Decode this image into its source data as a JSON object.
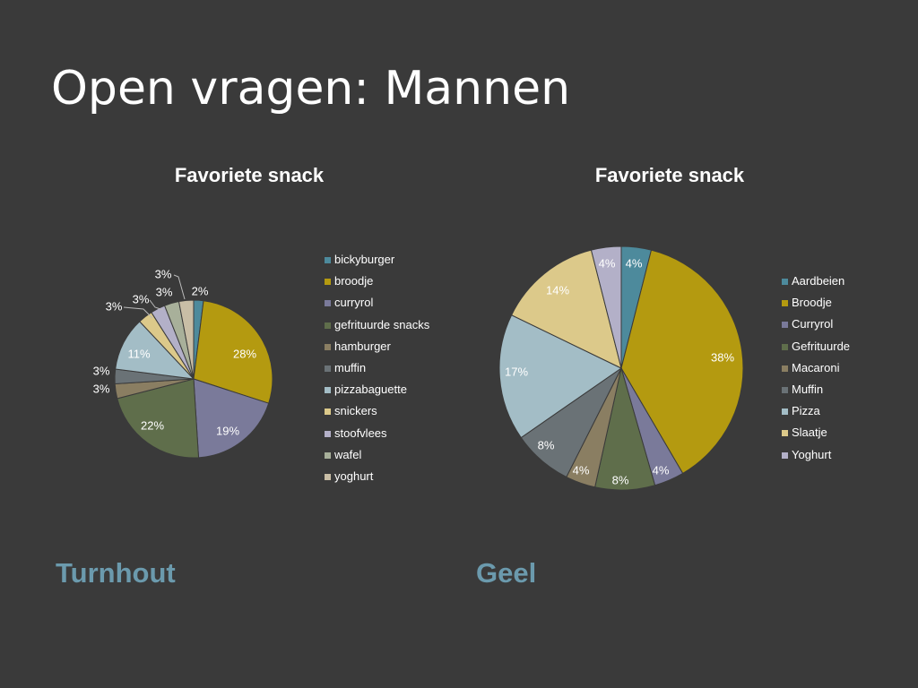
{
  "slide": {
    "title": "Open vragen: Mannen"
  },
  "colors": {
    "background": "#3a3a3a",
    "accent_label": "#6b9aad",
    "slice_border": "#3a3a3a"
  },
  "chart_data": [
    {
      "type": "pie",
      "title": "Favoriete snack",
      "region": "Turnhout",
      "legend": "right",
      "slices": [
        {
          "name": "bickyburger",
          "value": 2,
          "label": "2%",
          "color": "#4d8a9c"
        },
        {
          "name": "broodje",
          "value": 28,
          "label": "28%",
          "color": "#b49a10"
        },
        {
          "name": "curryrol",
          "value": 19,
          "label": "19%",
          "color": "#7a7a9a"
        },
        {
          "name": "gefrituurde snacks",
          "value": 22,
          "label": "22%",
          "color": "#5f6e4b"
        },
        {
          "name": "hamburger",
          "value": 3,
          "label": "3%",
          "color": "#8a7e62"
        },
        {
          "name": "muffin",
          "value": 3,
          "label": "3%",
          "color": "#6a7276"
        },
        {
          "name": "pizzabaguette",
          "value": 11,
          "label": "11%",
          "color": "#a3bdc6"
        },
        {
          "name": "snickers",
          "value": 3,
          "label": "3%",
          "color": "#dcc98a"
        },
        {
          "name": "stoofvlees",
          "value": 3,
          "label": "3%",
          "color": "#b3b0c8"
        },
        {
          "name": "wafel",
          "value": 3,
          "label": "3%",
          "color": "#a8b09a"
        },
        {
          "name": "yoghurt",
          "value": 3,
          "label": "3%",
          "color": "#c9bea6"
        }
      ]
    },
    {
      "type": "pie",
      "title": "Favoriete snack",
      "region": "Geel",
      "legend": "right",
      "slices": [
        {
          "name": "Aardbeien",
          "value": 4,
          "label": "4%",
          "color": "#4d8a9c"
        },
        {
          "name": "Broodje",
          "value": 38,
          "label": "38%",
          "color": "#b49a10"
        },
        {
          "name": "Curryrol",
          "value": 4,
          "label": "4%",
          "color": "#7a7a9a"
        },
        {
          "name": "Gefrituurde",
          "value": 8,
          "label": "8%",
          "color": "#5f6e4b"
        },
        {
          "name": "Macaroni",
          "value": 4,
          "label": "4%",
          "color": "#8a7e62"
        },
        {
          "name": "Muffin",
          "value": 8,
          "label": "8%",
          "color": "#6a7276"
        },
        {
          "name": "Pizza",
          "value": 17,
          "label": "17%",
          "color": "#a3bdc6"
        },
        {
          "name": "Slaatje",
          "value": 14,
          "label": "14%",
          "color": "#dcc98a"
        },
        {
          "name": "Yoghurt",
          "value": 4,
          "label": "4%",
          "color": "#b3b0c8"
        }
      ]
    }
  ]
}
